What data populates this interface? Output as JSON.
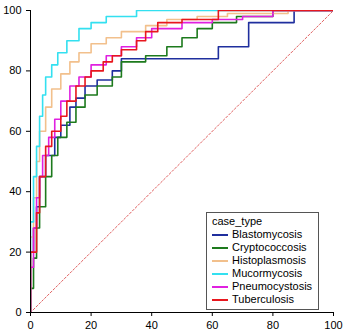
{
  "chart_data": {
    "type": "line",
    "xlim": [
      0,
      100
    ],
    "ylim": [
      0,
      100
    ],
    "xticks": [
      0,
      20,
      40,
      60,
      80,
      100
    ],
    "yticks": [
      0,
      20,
      40,
      60,
      80,
      100
    ],
    "grid": false,
    "legend": "bottom-right",
    "legend_title": "case_type",
    "series": [
      {
        "name": "Blastomycosis",
        "color": "#1f2f9e",
        "x": [
          0,
          0,
          1,
          2,
          3,
          5,
          8,
          10,
          13,
          15,
          18,
          22,
          27,
          30,
          62,
          72,
          87,
          100
        ],
        "values": [
          0,
          20,
          28,
          35,
          45,
          52,
          58,
          62,
          68,
          71,
          75,
          77,
          80,
          84,
          88,
          96,
          100,
          100
        ]
      },
      {
        "name": "Cryptococcosis",
        "color": "#1d7a1d",
        "x": [
          0,
          0,
          1,
          2,
          3,
          5,
          7,
          9,
          12,
          15,
          18,
          22,
          27,
          30,
          38,
          45,
          50,
          55,
          60,
          68,
          80,
          100
        ],
        "values": [
          0,
          8,
          18,
          28,
          35,
          45,
          52,
          58,
          63,
          68,
          72,
          75,
          78,
          83,
          85,
          88,
          91,
          94,
          96,
          98,
          100,
          100
        ]
      },
      {
        "name": "Histoplasmosis",
        "color": "#f2c08c",
        "x": [
          0,
          0,
          1,
          2,
          3,
          5,
          7,
          10,
          13,
          16,
          20,
          25,
          30,
          38,
          45,
          55,
          65,
          85,
          100
        ],
        "values": [
          0,
          25,
          38,
          50,
          60,
          68,
          74,
          79,
          83,
          86,
          89,
          91,
          93,
          95,
          97,
          98,
          99,
          100,
          100
        ]
      },
      {
        "name": "Mucormycosis",
        "color": "#33e0f0",
        "x": [
          0,
          0,
          1,
          2,
          3,
          4,
          5,
          7,
          9,
          12,
          16,
          20,
          25,
          35,
          100
        ],
        "values": [
          0,
          30,
          45,
          55,
          65,
          72,
          78,
          82,
          86,
          90,
          94,
          96,
          98,
          100,
          100
        ]
      },
      {
        "name": "Pneumocystosis",
        "color": "#e020e0",
        "x": [
          0,
          0,
          1,
          2,
          3,
          4,
          6,
          8,
          10,
          13,
          16,
          20,
          25,
          30,
          35,
          40,
          50,
          60,
          70,
          80,
          100
        ],
        "values": [
          0,
          15,
          28,
          38,
          45,
          52,
          58,
          64,
          70,
          75,
          78,
          82,
          85,
          88,
          91,
          94,
          96,
          97,
          98,
          100,
          100
        ]
      },
      {
        "name": "Tuberculosis",
        "color": "#e8171e",
        "x": [
          0,
          0,
          2,
          3,
          5,
          7,
          10,
          12,
          15,
          18,
          20,
          24,
          27,
          30,
          35,
          38,
          42,
          50,
          62,
          100
        ],
        "values": [
          0,
          20,
          33,
          45,
          55,
          60,
          65,
          70,
          75,
          78,
          80,
          83,
          85,
          87,
          90,
          93,
          96,
          97,
          100,
          100
        ]
      }
    ]
  }
}
